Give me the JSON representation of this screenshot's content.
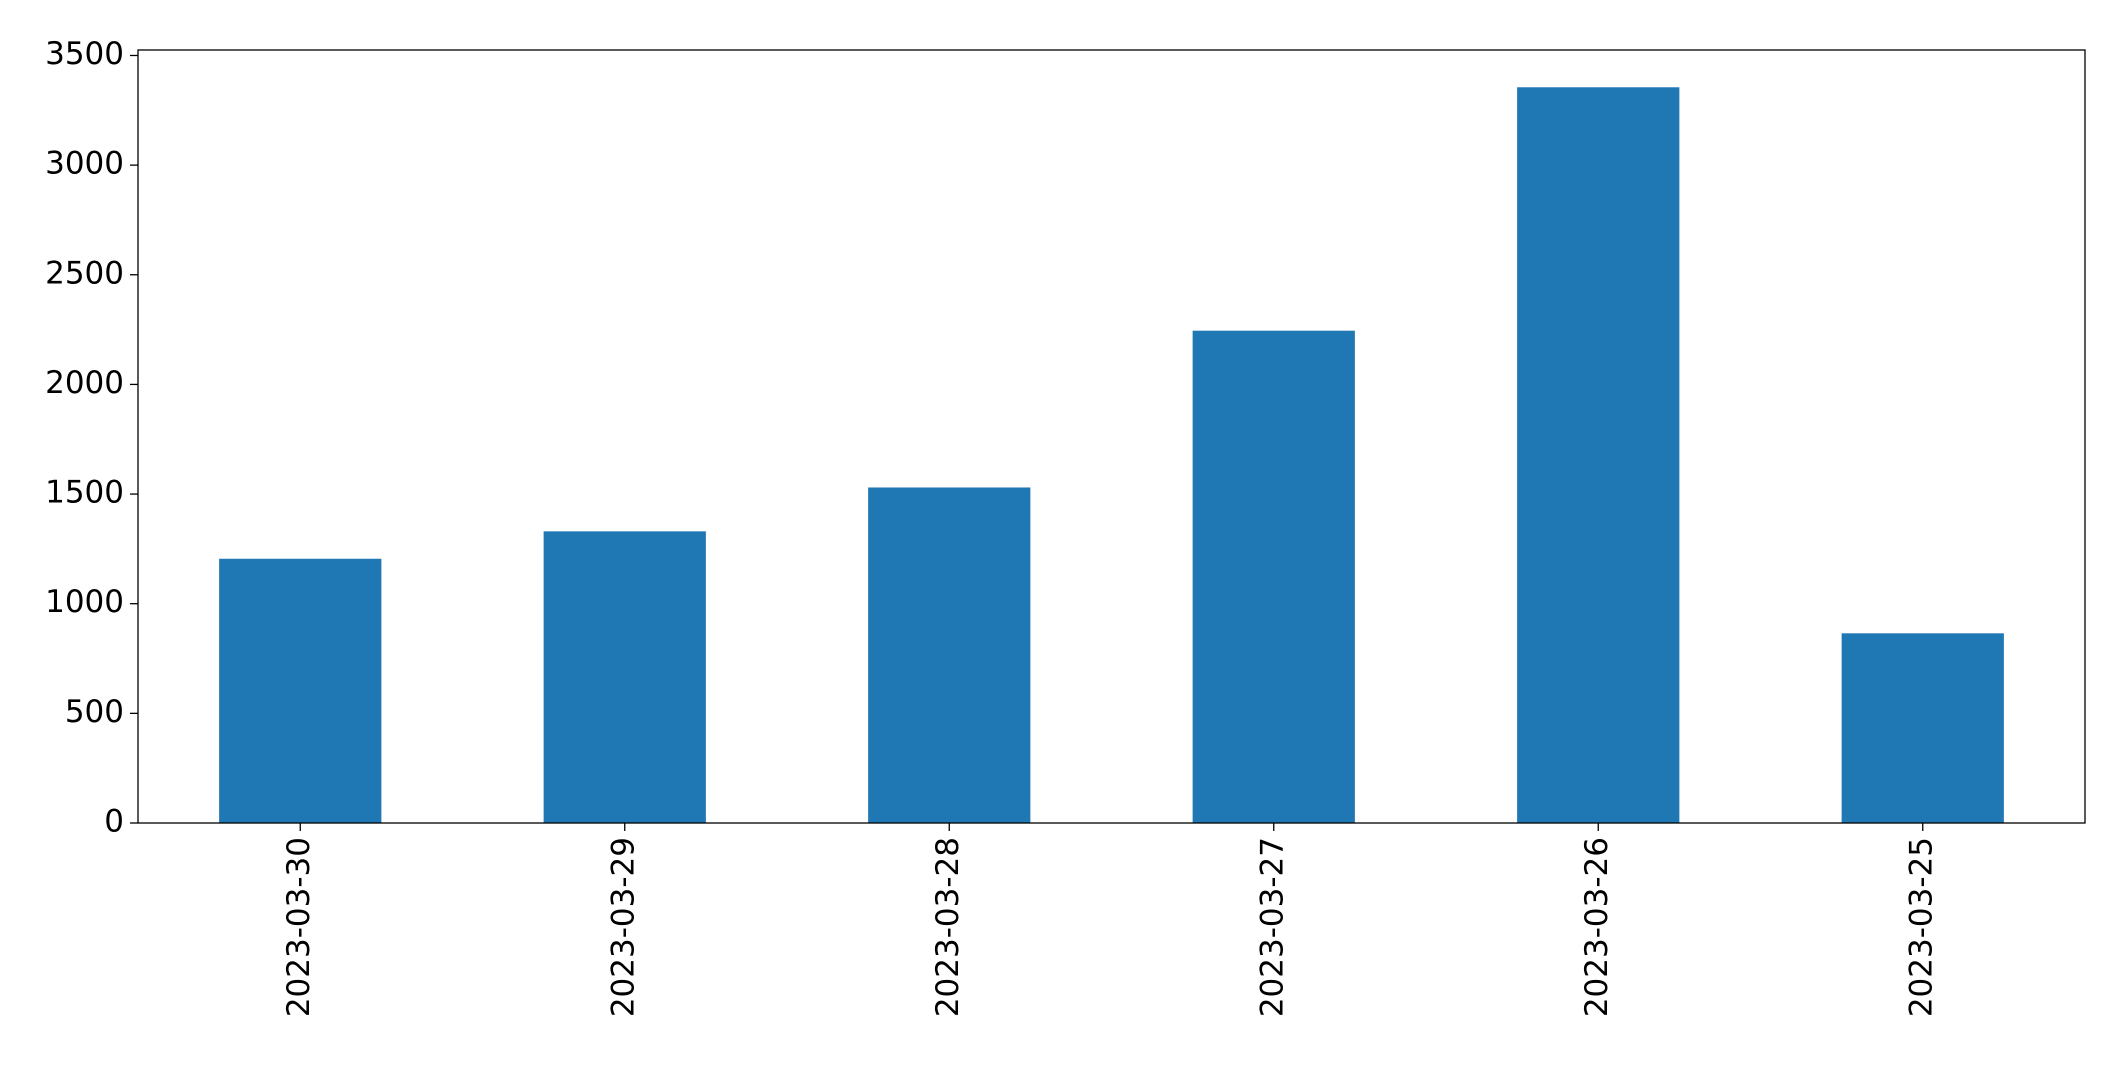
{
  "chart_data": {
    "type": "bar",
    "categories": [
      "2023-03-30",
      "2023-03-29",
      "2023-03-28",
      "2023-03-27",
      "2023-03-26",
      "2023-03-25"
    ],
    "values": [
      1205,
      1330,
      1530,
      2245,
      3355,
      865
    ],
    "color": "#1f77b4",
    "ylim": [
      0,
      3525
    ],
    "yticks": [
      0,
      500,
      1000,
      1500,
      2000,
      2500,
      3000,
      3500
    ],
    "grid": false
  }
}
